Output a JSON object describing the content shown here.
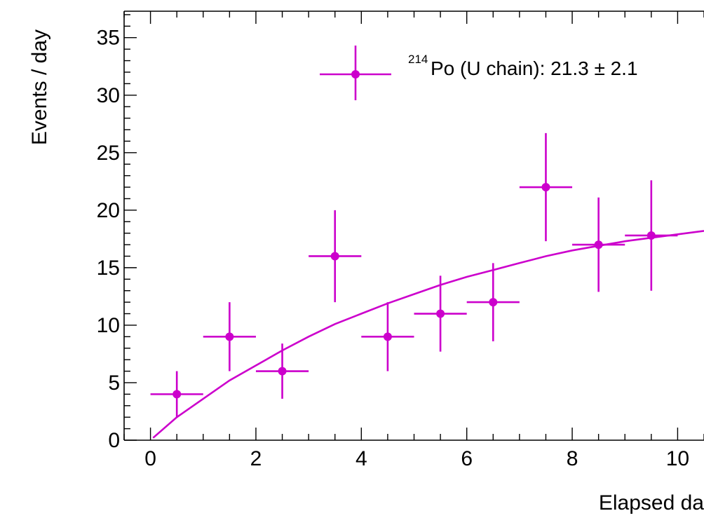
{
  "chart_data": {
    "type": "scatter",
    "title": "",
    "xlabel": "Elapsed da",
    "ylabel": "Events / day",
    "xlim": [
      -0.5,
      10.5
    ],
    "ylim": [
      0,
      37.3
    ],
    "x_ticks": [
      0,
      2,
      4,
      6,
      8,
      10
    ],
    "x_tick_labels": [
      "0",
      "2",
      "4",
      "6",
      "8",
      "10"
    ],
    "y_ticks": [
      0,
      5,
      10,
      15,
      20,
      25,
      30,
      35
    ],
    "y_tick_labels": [
      "0",
      "5",
      "10",
      "15",
      "20",
      "25",
      "30",
      "35"
    ],
    "grid": false,
    "legend": {
      "placement": "top-right",
      "sup": "214",
      "text": "Po (U chain): 21.3 ± 2.1"
    },
    "color": "#cc00cc",
    "series": [
      {
        "kind": "points_with_errors",
        "x": [
          0.5,
          1.5,
          2.5,
          3.5,
          4.5,
          5.5,
          6.5,
          7.5,
          8.5,
          9.5
        ],
        "y": [
          4,
          9,
          6,
          16,
          9,
          11,
          12,
          22,
          17,
          17.8
        ],
        "x_err": [
          0.5,
          0.5,
          0.5,
          0.5,
          0.5,
          0.5,
          0.5,
          0.5,
          0.5,
          0.5
        ],
        "y_err_low": [
          2.0,
          3.0,
          2.4,
          4.0,
          3.0,
          3.3,
          3.4,
          4.7,
          4.1,
          4.8
        ],
        "y_err_high": [
          2.0,
          3.0,
          2.4,
          4.0,
          3.0,
          3.3,
          3.4,
          4.7,
          4.1,
          4.8
        ]
      },
      {
        "kind": "fit_curve",
        "x": [
          0.05,
          0.5,
          1,
          1.5,
          2,
          2.5,
          3,
          3.5,
          4,
          4.5,
          5,
          5.5,
          6,
          6.5,
          7,
          7.5,
          8,
          8.5,
          9,
          9.5,
          10,
          10.5
        ],
        "y": [
          0.2,
          2.0,
          3.6,
          5.2,
          6.5,
          7.8,
          9.0,
          10.1,
          11.0,
          11.9,
          12.7,
          13.5,
          14.2,
          14.8,
          15.4,
          16.0,
          16.5,
          16.9,
          17.3,
          17.6,
          17.9,
          18.2
        ]
      }
    ]
  }
}
